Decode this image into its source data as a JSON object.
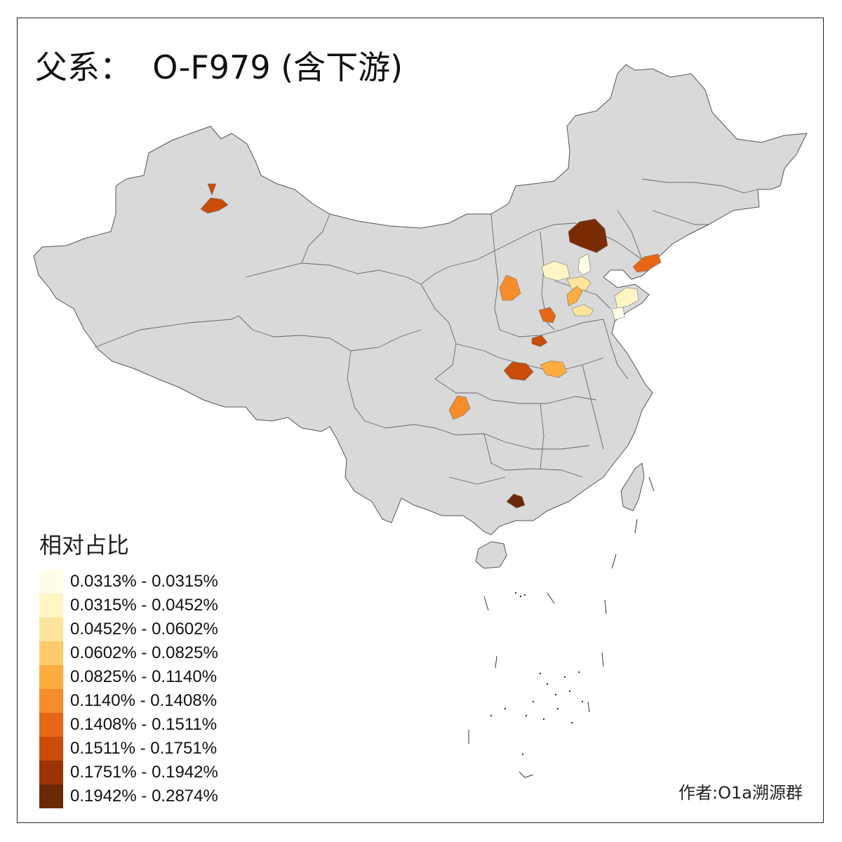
{
  "title": "父系：  O-F979 (含下游)",
  "legend": {
    "title": "相对占比",
    "bins": [
      {
        "label": "0.0313% - 0.0315%",
        "color": "#FFFEE8"
      },
      {
        "label": "0.0315% - 0.0452%",
        "color": "#FFF5C5"
      },
      {
        "label": "0.0452% - 0.0602%",
        "color": "#FEE59C"
      },
      {
        "label": "0.0602% - 0.0825%",
        "color": "#FECB6A"
      },
      {
        "label": "0.0825% - 0.1140%",
        "color": "#FDAC3F"
      },
      {
        "label": "0.1140% - 0.1408%",
        "color": "#F68C2A"
      },
      {
        "label": "0.1408% - 0.1511%",
        "color": "#E66716"
      },
      {
        "label": "0.1511% - 0.1751%",
        "color": "#C94C09"
      },
      {
        "label": "0.1751% - 0.1942%",
        "color": "#9C3305"
      },
      {
        "label": "0.1942% - 0.2874%",
        "color": "#6B2806"
      }
    ]
  },
  "credit": "作者:O1a溯源群",
  "map": {
    "base_color": "#D9D9D9",
    "border_color": "#555555"
  }
}
